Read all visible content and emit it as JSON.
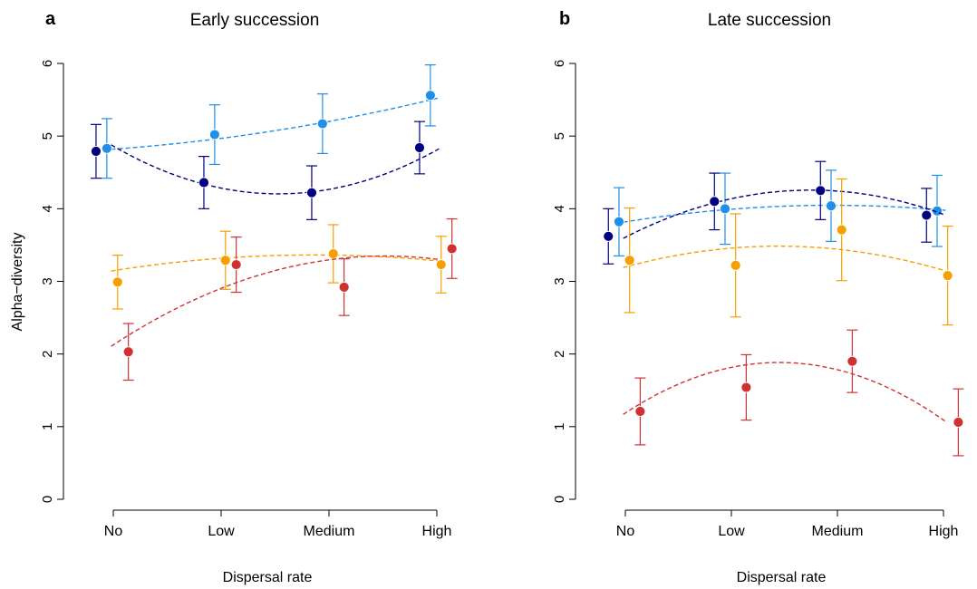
{
  "chart_data": [
    {
      "type": "scatter",
      "panel_label": "a",
      "title": "Early succession",
      "xlabel": "Dispersal rate",
      "ylabel": "Alpha−diversity",
      "categories": [
        "No",
        "Low",
        "Medium",
        "High"
      ],
      "yticks": [
        "0",
        "1",
        "2",
        "3",
        "4",
        "5",
        "6"
      ],
      "ylim": [
        0,
        6
      ],
      "grid": false,
      "series": [
        {
          "color": "#1f8fe8",
          "offset": -0.06,
          "values": [
            4.83,
            5.02,
            5.17,
            5.56
          ],
          "error": [
            0.41,
            0.41,
            0.41,
            0.42
          ],
          "fit": [
            4.82,
            4.97,
            5.2,
            5.52
          ]
        },
        {
          "color": "#000080",
          "offset": -0.16,
          "values": [
            4.79,
            4.36,
            4.22,
            4.84
          ],
          "error": [
            0.37,
            0.36,
            0.37,
            0.36
          ],
          "fit": [
            4.85,
            4.32,
            4.23,
            4.82
          ]
        },
        {
          "color": "#f5a000",
          "offset": 0.04,
          "values": [
            2.99,
            3.29,
            3.38,
            3.23
          ],
          "error": [
            0.37,
            0.4,
            0.4,
            0.39
          ],
          "fit": [
            3.15,
            3.31,
            3.37,
            3.28
          ]
        },
        {
          "color": "#d03232",
          "offset": 0.14,
          "values": [
            2.03,
            3.23,
            2.92,
            3.45
          ],
          "error": [
            0.39,
            0.38,
            0.39,
            0.41
          ],
          "fit": [
            2.12,
            2.92,
            3.28,
            3.31
          ]
        }
      ]
    },
    {
      "type": "scatter",
      "panel_label": "b",
      "title": "Late succession",
      "xlabel": "Dispersal rate",
      "ylabel": "",
      "categories": [
        "No",
        "Low",
        "Medium",
        "High"
      ],
      "yticks": [
        "0",
        "1",
        "2",
        "3",
        "4",
        "5",
        "6"
      ],
      "ylim": [
        0,
        6
      ],
      "grid": false,
      "series": [
        {
          "color": "#1f8fe8",
          "offset": -0.06,
          "values": [
            3.82,
            4.0,
            4.04,
            3.97
          ],
          "error": [
            0.47,
            0.49,
            0.49,
            0.49
          ],
          "fit": [
            3.82,
            3.99,
            4.05,
            3.98
          ]
        },
        {
          "color": "#000080",
          "offset": -0.16,
          "values": [
            3.62,
            4.1,
            4.25,
            3.91
          ],
          "error": [
            0.38,
            0.39,
            0.4,
            0.37
          ],
          "fit": [
            3.61,
            4.13,
            4.25,
            3.92
          ]
        },
        {
          "color": "#f5a000",
          "offset": 0.04,
          "values": [
            3.29,
            3.22,
            3.71,
            3.08
          ],
          "error": [
            0.72,
            0.71,
            0.7,
            0.68
          ],
          "fit": [
            3.2,
            3.45,
            3.45,
            3.15
          ]
        },
        {
          "color": "#d03232",
          "offset": 0.14,
          "values": [
            1.21,
            1.54,
            1.9,
            1.06
          ],
          "error": [
            0.46,
            0.45,
            0.43,
            0.46
          ],
          "fit": [
            1.2,
            1.78,
            1.82,
            1.08
          ]
        }
      ]
    }
  ]
}
